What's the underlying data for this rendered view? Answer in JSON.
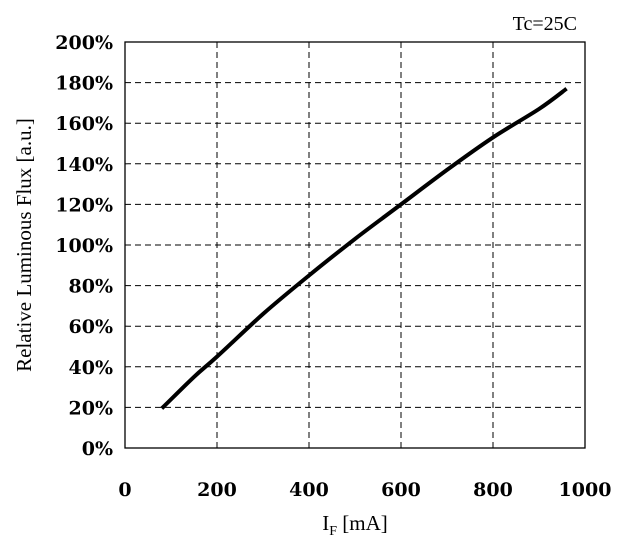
{
  "chart_data": {
    "type": "line",
    "title": "",
    "annotation": "Tc=25C",
    "xlabel_main": "I",
    "xlabel_sub": "F",
    "xlabel_unit": " [mA]",
    "ylabel": "Relative Luminous Flux [a.u.]",
    "xlim": [
      0,
      1000
    ],
    "ylim": [
      0,
      200
    ],
    "x_ticks": [
      0,
      200,
      400,
      600,
      800,
      1000
    ],
    "y_ticks": [
      0,
      20,
      40,
      60,
      80,
      100,
      120,
      140,
      160,
      180,
      200
    ],
    "x_tick_labels": [
      "0",
      "200",
      "400",
      "600",
      "800",
      "1000"
    ],
    "y_tick_labels": [
      "0%",
      "20%",
      "40%",
      "60%",
      "80%",
      "100%",
      "120%",
      "140%",
      "160%",
      "180%",
      "200%"
    ],
    "grid": true,
    "series": [
      {
        "color": "#000000",
        "x": [
          80,
          150,
          200,
          300,
          400,
          500,
          600,
          700,
          800,
          900,
          960
        ],
        "y": [
          19.5,
          35,
          45,
          66,
          85,
          103,
          120,
          137,
          153,
          167,
          177
        ]
      }
    ]
  }
}
